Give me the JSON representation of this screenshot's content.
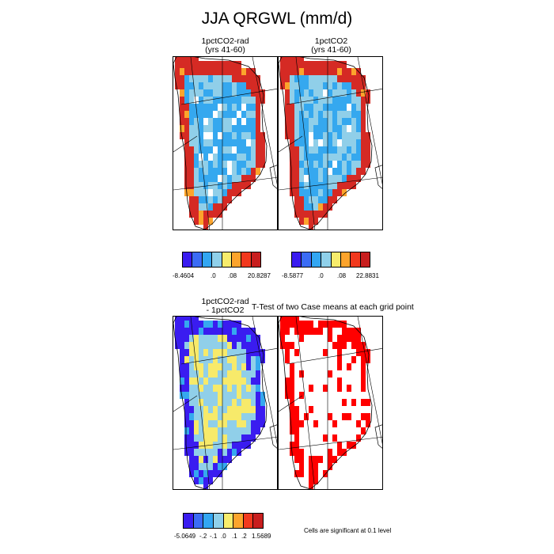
{
  "title": "JJA QRGWL (mm/d)",
  "panels": {
    "p1": {
      "title": "1pctCO2-rad\n(yrs 41-60)"
    },
    "p2": {
      "title": "1pctCO2\n(yrs 41-60)"
    },
    "p3": {
      "title": "1pctCO2-rad\n- 1pctCO2"
    },
    "p4": {
      "title": "T-Test of two Case means at each grid point"
    }
  },
  "legend1": {
    "colors": [
      "#3a1cf0",
      "#3b6cf5",
      "#32a6f2",
      "#8fd0ea",
      "#f7ec6c",
      "#fca42c",
      "#f2391e",
      "#c81e1e"
    ],
    "labels": [
      "-8.4604",
      ".0",
      ".08",
      "20.8287"
    ]
  },
  "legend2": {
    "colors": [
      "#3a1cf0",
      "#3b6cf5",
      "#32a6f2",
      "#8fd0ea",
      "#f7ec6c",
      "#fca42c",
      "#f2391e",
      "#c81e1e"
    ],
    "labels": [
      "-8.5877",
      ".0",
      ".08",
      "22.8831"
    ]
  },
  "legend3": {
    "colors": [
      "#3a1cf0",
      "#3b6cf5",
      "#32a6f2",
      "#8fd0ea",
      "#f7ec6c",
      "#fca42c",
      "#f2391e",
      "#c81e1e"
    ],
    "labels": [
      "-5.0649",
      "-.2",
      "-.1",
      ".0",
      ".1",
      ".2",
      "1.5689"
    ]
  },
  "significance_note": "Cells are significant at 0.1 level",
  "map_colors": {
    "red": "#d52a24",
    "light_blue": "#35a8ef",
    "pale_blue": "#90cfe9",
    "blue": "#3a1cf0",
    "yellow": "#f7ea6a",
    "orange": "#fca42c",
    "sig_red": "#ff0000"
  }
}
